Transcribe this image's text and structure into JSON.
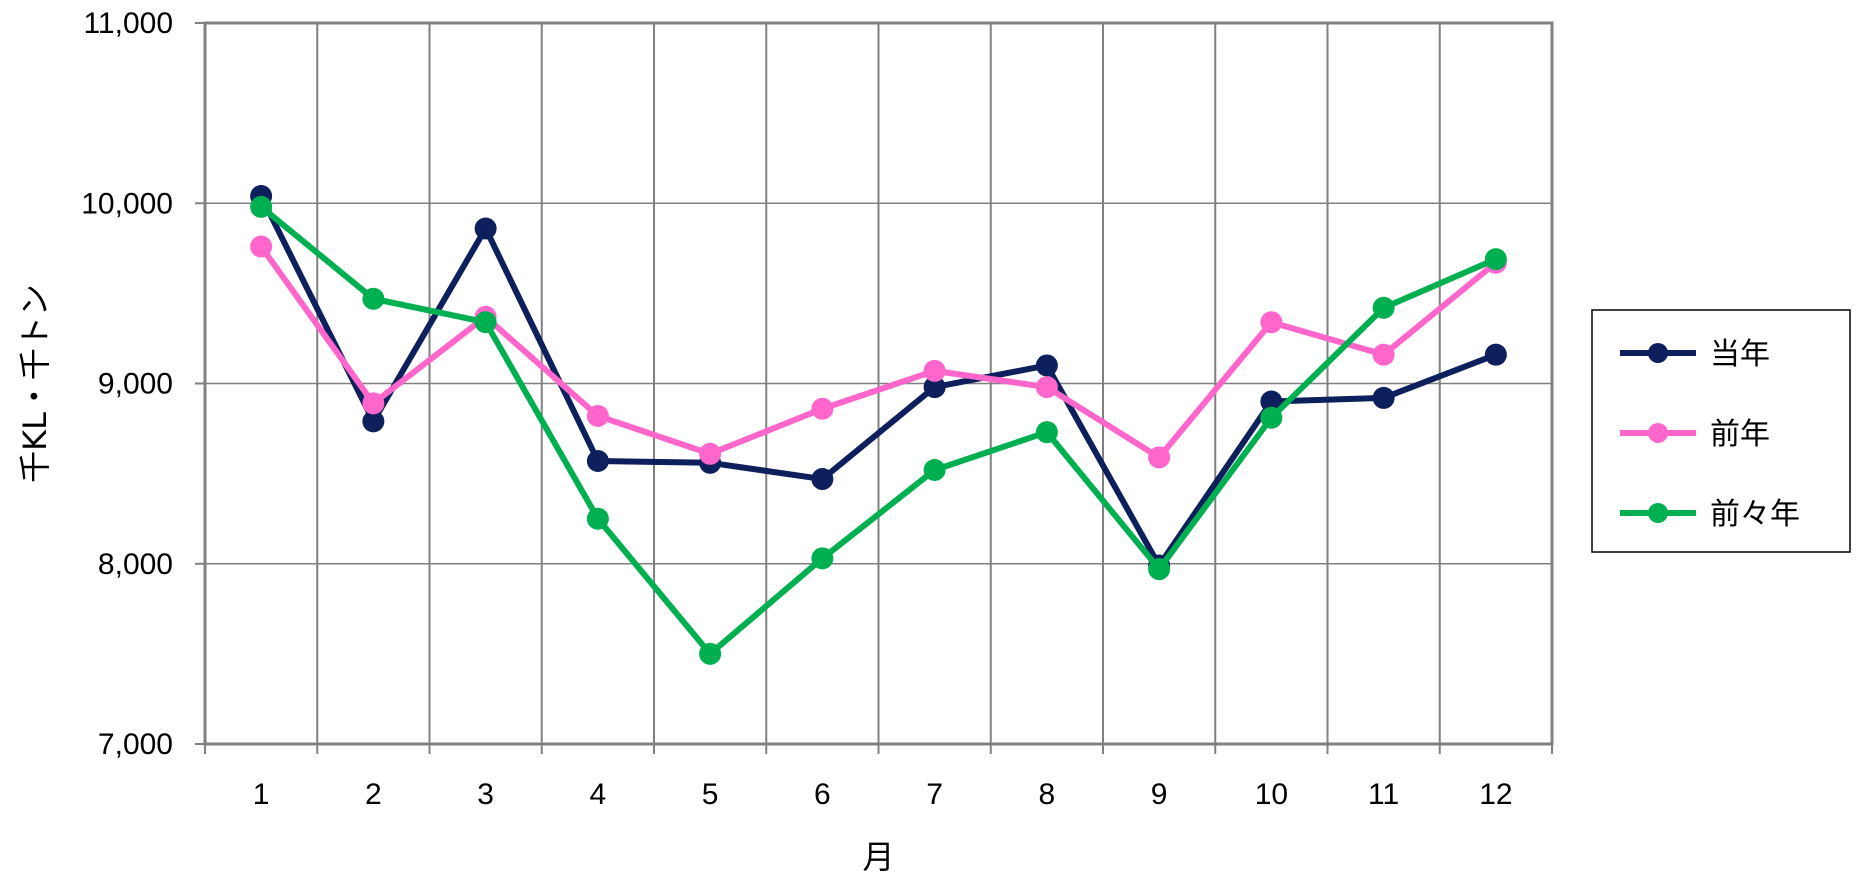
{
  "chart_data": {
    "type": "line",
    "title": "",
    "xlabel": "月",
    "ylabel": "千KL・千トン",
    "categories": [
      "1",
      "2",
      "3",
      "4",
      "5",
      "6",
      "7",
      "8",
      "9",
      "10",
      "11",
      "12"
    ],
    "ylim": [
      7000,
      11000
    ],
    "yticks": [
      7000,
      8000,
      9000,
      10000,
      11000
    ],
    "ytick_labels": [
      "7,000",
      "8,000",
      "9,000",
      "10,000",
      "11,000"
    ],
    "grid": true,
    "legend_position": "right",
    "series": [
      {
        "name": "当年",
        "color": "#0d1f5c",
        "values": [
          10040,
          8790,
          9860,
          8570,
          8560,
          8470,
          8980,
          9100,
          7990,
          8900,
          8920,
          9160
        ]
      },
      {
        "name": "前年",
        "color": "#ff66cc",
        "values": [
          9760,
          8890,
          9370,
          8820,
          8610,
          8860,
          9070,
          8980,
          8590,
          9340,
          9160,
          9670
        ]
      },
      {
        "name": "前々年",
        "color": "#00b050",
        "values": [
          9980,
          9470,
          9340,
          8250,
          7500,
          8030,
          8520,
          8730,
          7970,
          8810,
          9420,
          9690
        ]
      }
    ]
  }
}
